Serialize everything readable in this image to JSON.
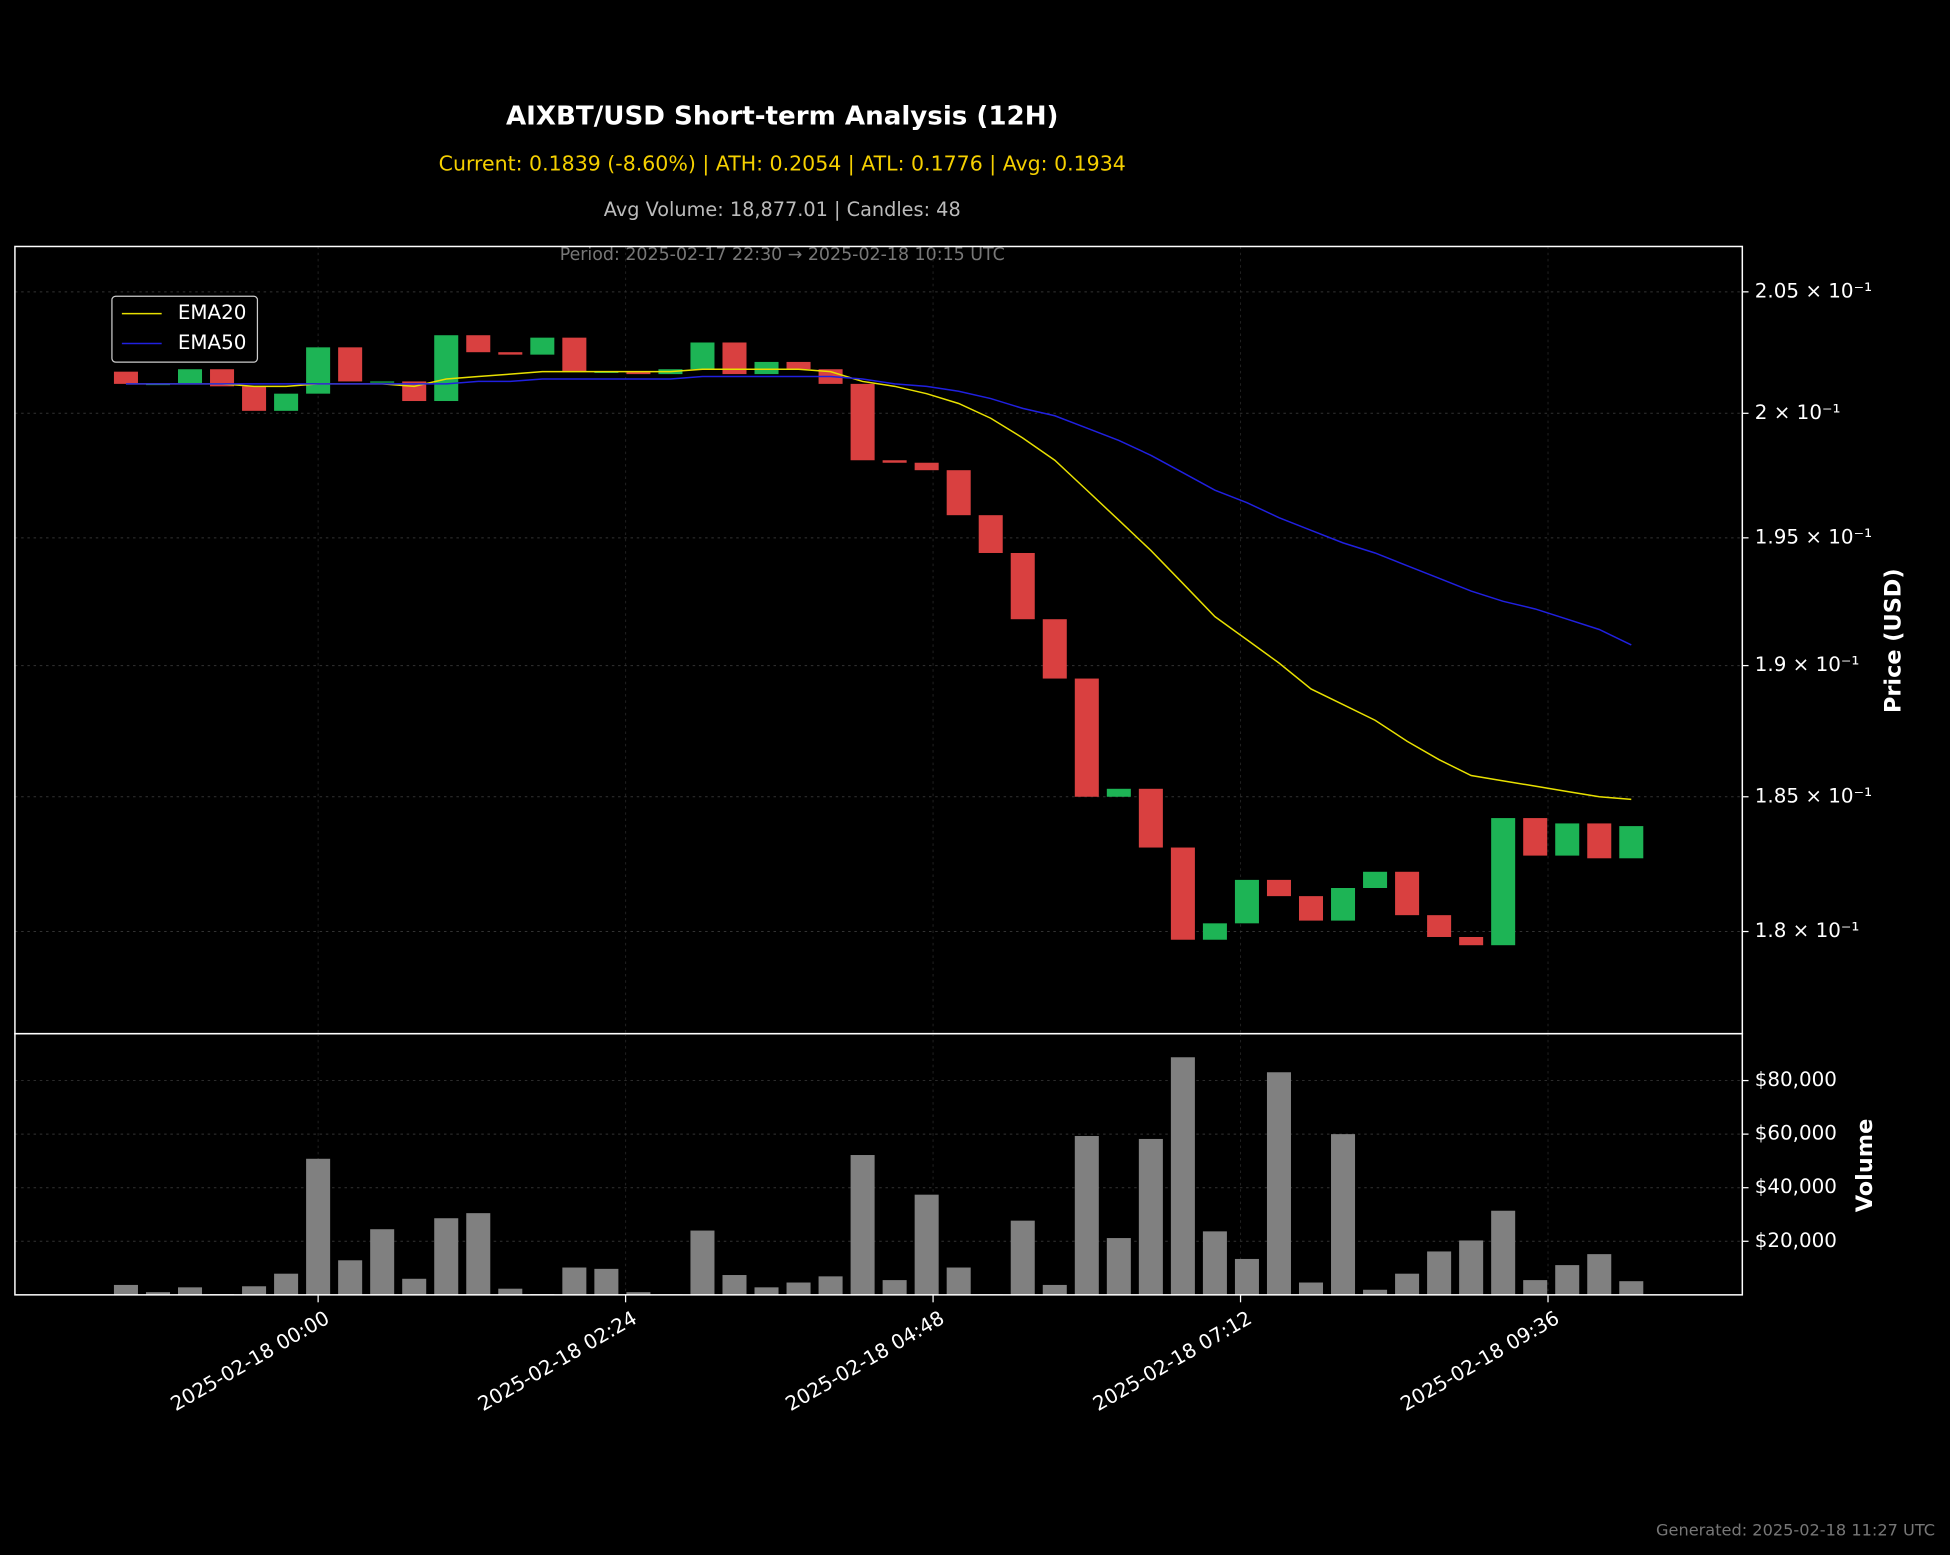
{
  "chart_data": [
    {
      "type": "candlestick",
      "title": "AIXBT/USD Short-term Analysis (12H)",
      "subtitle": "Current: 0.1839 (-8.60%) | ATH: 0.2054 | ATL: 0.1776 | Avg: 0.1934",
      "subtitle2": "Avg Volume: 18,877.01 | Candles: 48",
      "annotation": "Period: 2025-02-17 22:30 → 2025-02-18 10:15 UTC",
      "ylabel": "Price (USD)",
      "log_scale": true,
      "grid": true,
      "legend": "upper left",
      "up_color": "#1db455",
      "down_color": "#d94040",
      "x": [
        "2025-02-17 22:30",
        "2025-02-17 22:45",
        "2025-02-17 23:00",
        "2025-02-17 23:15",
        "2025-02-17 23:30",
        "2025-02-17 23:45",
        "2025-02-18 00:00",
        "2025-02-18 00:15",
        "2025-02-18 00:30",
        "2025-02-18 00:45",
        "2025-02-18 01:00",
        "2025-02-18 01:15",
        "2025-02-18 01:30",
        "2025-02-18 01:45",
        "2025-02-18 02:00",
        "2025-02-18 02:15",
        "2025-02-18 02:30",
        "2025-02-18 02:45",
        "2025-02-18 03:00",
        "2025-02-18 03:15",
        "2025-02-18 03:30",
        "2025-02-18 03:45",
        "2025-02-18 04:00",
        "2025-02-18 04:15",
        "2025-02-18 04:30",
        "2025-02-18 04:45",
        "2025-02-18 05:00",
        "2025-02-18 05:15",
        "2025-02-18 05:30",
        "2025-02-18 05:45",
        "2025-02-18 06:00",
        "2025-02-18 06:15",
        "2025-02-18 06:30",
        "2025-02-18 06:45",
        "2025-02-18 07:00",
        "2025-02-18 07:15",
        "2025-02-18 07:30",
        "2025-02-18 07:45",
        "2025-02-18 08:00",
        "2025-02-18 08:15",
        "2025-02-18 08:30",
        "2025-02-18 08:45",
        "2025-02-18 09:00",
        "2025-02-18 09:15",
        "2025-02-18 09:30",
        "2025-02-18 09:45",
        "2025-02-18 10:00",
        "2025-02-18 10:15"
      ],
      "open": [
        0.2017,
        0.2012,
        0.2012,
        0.2018,
        0.2011,
        0.2001,
        0.2008,
        0.2027,
        0.2013,
        0.2013,
        0.2005,
        0.2032,
        0.2025,
        0.2024,
        0.2031,
        0.2017,
        0.2017,
        0.2016,
        0.2018,
        0.2029,
        0.2016,
        0.2021,
        0.2018,
        0.2012,
        0.1981,
        0.198,
        0.1977,
        0.1959,
        0.1944,
        0.1918,
        0.1895,
        0.185,
        0.1853,
        0.1831,
        0.1797,
        0.1803,
        0.1819,
        0.1813,
        0.1804,
        0.1816,
        0.1822,
        0.1806,
        0.1798,
        0.1795,
        0.1842,
        0.1828,
        0.184,
        0.1827
      ],
      "close": [
        0.2012,
        0.2012,
        0.2018,
        0.2011,
        0.2001,
        0.2008,
        0.2027,
        0.2013,
        0.2013,
        0.2005,
        0.2032,
        0.2025,
        0.2024,
        0.2031,
        0.2017,
        0.2017,
        0.2016,
        0.2018,
        0.2029,
        0.2016,
        0.2021,
        0.2018,
        0.2012,
        0.1981,
        0.198,
        0.1977,
        0.1959,
        0.1944,
        0.1918,
        0.1895,
        0.185,
        0.1853,
        0.1831,
        0.1797,
        0.1803,
        0.1819,
        0.1813,
        0.1804,
        0.1816,
        0.1822,
        0.1806,
        0.1798,
        0.1795,
        0.1842,
        0.1828,
        0.184,
        0.1827,
        0.1839
      ],
      "series": [
        {
          "name": "EMA20",
          "color": "#e8e000",
          "values": [
            0.2012,
            0.2012,
            0.2012,
            0.2012,
            0.2011,
            0.2011,
            0.2012,
            0.2012,
            0.2012,
            0.2011,
            0.2014,
            0.2015,
            0.2016,
            0.2017,
            0.2017,
            0.2017,
            0.2017,
            0.2017,
            0.2018,
            0.2018,
            0.2018,
            0.2018,
            0.2017,
            0.2013,
            0.2011,
            0.2008,
            0.2004,
            0.1998,
            0.199,
            0.1981,
            0.1969,
            0.1957,
            0.1945,
            0.1932,
            0.1919,
            0.191,
            0.1901,
            0.1891,
            0.1885,
            0.1879,
            0.1871,
            0.1864,
            0.1858,
            0.1856,
            0.1854,
            0.1852,
            0.185,
            0.1849
          ]
        },
        {
          "name": "EMA50",
          "color": "#2020e0",
          "values": [
            0.2012,
            0.2012,
            0.2012,
            0.2012,
            0.2012,
            0.2012,
            0.2012,
            0.2012,
            0.2012,
            0.2012,
            0.2012,
            0.2013,
            0.2013,
            0.2014,
            0.2014,
            0.2014,
            0.2014,
            0.2014,
            0.2015,
            0.2015,
            0.2015,
            0.2015,
            0.2015,
            0.2014,
            0.2012,
            0.2011,
            0.2009,
            0.2006,
            0.2002,
            0.1999,
            0.1994,
            0.1989,
            0.1983,
            0.1976,
            0.1969,
            0.1964,
            0.1958,
            0.1953,
            0.1948,
            0.1944,
            0.1939,
            0.1934,
            0.1929,
            0.1925,
            0.1922,
            0.1918,
            0.1914,
            0.1908
          ]
        }
      ],
      "xlim": [
        "2025-02-17 21:38",
        "2025-02-18 11:07"
      ],
      "xticks": [
        "2025-02-18 00:00",
        "2025-02-18 02:24",
        "2025-02-18 04:48",
        "2025-02-18 07:12",
        "2025-02-18 09:36"
      ],
      "ylim": [
        0.1763,
        0.2069
      ],
      "yticks": [
        {
          "value": 0.18,
          "label": "1.8 × 10⁻¹"
        },
        {
          "value": 0.185,
          "label": "1.85 × 10⁻¹"
        },
        {
          "value": 0.19,
          "label": "1.9 × 10⁻¹"
        },
        {
          "value": 0.195,
          "label": "1.95 × 10⁻¹"
        },
        {
          "value": 0.2,
          "label": "2 × 10⁻¹"
        },
        {
          "value": 0.205,
          "label": "2.05 × 10⁻¹"
        }
      ]
    },
    {
      "type": "bar",
      "ylabel": "Volume",
      "color": "#808080",
      "grid": true,
      "x": [
        "2025-02-17 22:30",
        "2025-02-17 22:45",
        "2025-02-17 23:00",
        "2025-02-17 23:15",
        "2025-02-17 23:30",
        "2025-02-17 23:45",
        "2025-02-18 00:00",
        "2025-02-18 00:15",
        "2025-02-18 00:30",
        "2025-02-18 00:45",
        "2025-02-18 01:00",
        "2025-02-18 01:15",
        "2025-02-18 01:30",
        "2025-02-18 01:45",
        "2025-02-18 02:00",
        "2025-02-18 02:15",
        "2025-02-18 02:30",
        "2025-02-18 02:45",
        "2025-02-18 03:00",
        "2025-02-18 03:15",
        "2025-02-18 03:30",
        "2025-02-18 03:45",
        "2025-02-18 04:00",
        "2025-02-18 04:15",
        "2025-02-18 04:30",
        "2025-02-18 04:45",
        "2025-02-18 05:00",
        "2025-02-18 05:15",
        "2025-02-18 05:30",
        "2025-02-18 05:45",
        "2025-02-18 06:00",
        "2025-02-18 06:15",
        "2025-02-18 06:30",
        "2025-02-18 06:45",
        "2025-02-18 07:00",
        "2025-02-18 07:15",
        "2025-02-18 07:30",
        "2025-02-18 07:45",
        "2025-02-18 08:00",
        "2025-02-18 08:15",
        "2025-02-18 08:30",
        "2025-02-18 08:45",
        "2025-02-18 09:00",
        "2025-02-18 09:15",
        "2025-02-18 09:30",
        "2025-02-18 09:45",
        "2025-02-18 10:00",
        "2025-02-18 10:15"
      ],
      "values": [
        3700,
        1000,
        2800,
        300,
        3200,
        7900,
        50800,
        12900,
        24500,
        6000,
        28600,
        30500,
        2300,
        300,
        10200,
        9700,
        1000,
        200,
        24000,
        7400,
        2800,
        4600,
        6900,
        52200,
        5500,
        37400,
        10200,
        200,
        27700,
        3700,
        59300,
        21200,
        58200,
        88700,
        23700,
        13400,
        83100,
        4600,
        60000,
        1900,
        7900,
        16200,
        20300,
        31400,
        5500,
        11100,
        15200,
        5100
      ],
      "xlim": [
        "2025-02-17 21:38",
        "2025-02-18 11:07"
      ],
      "xticks": [
        "2025-02-18 00:00",
        "2025-02-18 02:24",
        "2025-02-18 04:48",
        "2025-02-18 07:12",
        "2025-02-18 09:36"
      ],
      "ylim": [
        0,
        97500
      ],
      "yticks": [
        {
          "value": 20000,
          "label": "$20,000"
        },
        {
          "value": 40000,
          "label": "$40,000"
        },
        {
          "value": 60000,
          "label": "$60,000"
        },
        {
          "value": 80000,
          "label": "$80,000"
        }
      ]
    }
  ],
  "footer": "Generated: 2025-02-18 11:27 UTC"
}
